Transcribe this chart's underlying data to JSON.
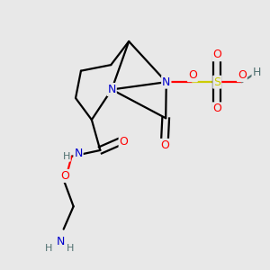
{
  "bg_color": "#e8e8e8",
  "atom_colors": {
    "N": "#0000cc",
    "O": "#ff0000",
    "S": "#cccc00",
    "C": "#000000",
    "H": "#507070"
  }
}
